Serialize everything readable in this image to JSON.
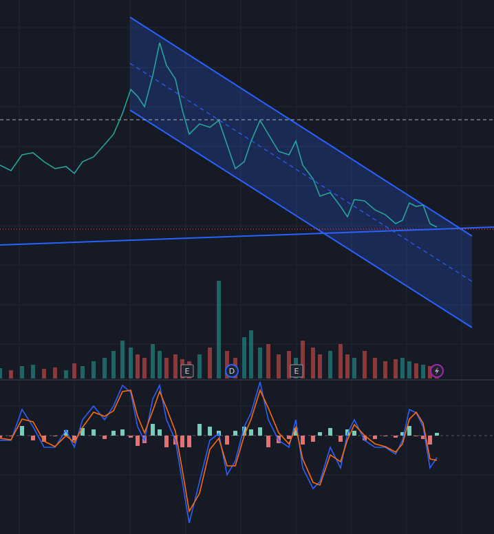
{
  "chart_data": [
    {
      "type": "line",
      "color": "#26a69a",
      "x": [
        0,
        16,
        32,
        48,
        64,
        80,
        96,
        108,
        120,
        136,
        152,
        165,
        178,
        190,
        200,
        210,
        222,
        232,
        242,
        255,
        265,
        275,
        290,
        305,
        318,
        330,
        342,
        355,
        365,
        378,
        390,
        405,
        420,
        430,
        440,
        455,
        465,
        480,
        495,
        505,
        515,
        530,
        545,
        560,
        575,
        585,
        595,
        605,
        615,
        625,
        635
      ],
      "values": [
        62,
        60.4,
        65,
        65.6,
        63,
        61,
        61.6,
        59.6,
        63,
        64.4,
        68,
        71,
        77,
        84,
        82,
        79,
        88,
        97.6,
        91,
        87,
        78,
        71,
        74,
        73,
        75,
        68,
        61,
        63,
        69,
        75,
        71,
        66,
        65,
        69,
        62,
        58,
        53,
        54,
        50,
        47,
        52,
        51.6,
        49,
        47.6,
        45,
        46,
        51,
        50,
        50.4,
        45,
        44
      ],
      "xlim": [
        0,
        718
      ],
      "ylim": [
        0,
        110
      ]
    },
    {
      "type": "bar",
      "up_color": "#26a69a",
      "down_color": "#ef5350",
      "x": [
        0,
        16,
        32,
        48,
        64,
        80,
        96,
        108,
        120,
        136,
        152,
        165,
        178,
        190,
        200,
        210,
        222,
        232,
        242,
        255,
        265,
        275,
        290,
        305,
        318,
        330,
        342,
        355,
        365,
        378,
        390,
        405,
        420,
        430,
        440,
        455,
        465,
        480,
        495,
        505,
        515,
        530,
        545,
        560,
        575,
        585,
        595,
        605,
        615,
        625,
        635
      ],
      "values": [
        15,
        12,
        18,
        20,
        14,
        16,
        12,
        22,
        18,
        25,
        30,
        40,
        55,
        45,
        35,
        30,
        50,
        40,
        30,
        35,
        28,
        25,
        35,
        45,
        142,
        40,
        30,
        60,
        70,
        45,
        50,
        35,
        40,
        30,
        55,
        45,
        35,
        40,
        50,
        35,
        30,
        40,
        30,
        25,
        28,
        30,
        25,
        22,
        20,
        18,
        15
      ],
      "xlim": [
        0,
        718
      ],
      "ylim": [
        0,
        150
      ]
    },
    {
      "type": "line",
      "x": [
        0,
        16,
        32,
        48,
        64,
        80,
        96,
        108,
        120,
        136,
        152,
        165,
        178,
        190,
        200,
        210,
        222,
        232,
        242,
        255,
        265,
        275,
        290,
        305,
        318,
        330,
        342,
        355,
        365,
        378,
        390,
        405,
        420,
        430,
        440,
        455,
        465,
        480,
        495,
        505,
        515,
        530,
        545,
        560,
        575,
        585,
        595,
        605,
        615,
        625,
        635
      ],
      "series": [
        {
          "color": "#2962ff",
          "values": [
            -3.5,
            -3.5,
            19,
            6.5,
            -8.5,
            -8.5,
            4,
            -8.5,
            11.5,
            21.5,
            11.5,
            21.5,
            36.5,
            31.5,
            6.5,
            -3.5,
            26.5,
            36.5,
            11.5,
            -3.5,
            -33.5,
            -63.5,
            -33.5,
            -3.5,
            1.5,
            -28.5,
            -18.5,
            6.5,
            16.5,
            39,
            11.5,
            -3.5,
            -8.5,
            11.5,
            -23.5,
            -38.5,
            -33.5,
            -8.5,
            -23.5,
            1.5,
            11.5,
            -3.5,
            -8.5,
            -8.5,
            -13.5,
            -3.5,
            19,
            16.5,
            6.5,
            -23.5,
            -16
          ]
        },
        {
          "color": "#ff6d00",
          "values": [
            -2,
            -3,
            12,
            10,
            -4,
            -8,
            0,
            -5,
            6,
            17,
            14,
            18,
            32,
            33,
            14,
            2,
            18,
            32,
            20,
            3,
            -25,
            -55,
            -42,
            -10,
            -2,
            -22,
            -22,
            0,
            12,
            33,
            20,
            2,
            -6,
            6,
            -17,
            -34,
            -36,
            -14,
            -19,
            -3,
            8,
            0,
            -6,
            -8,
            -12,
            -6,
            12,
            17,
            9,
            -17,
            -18
          ]
        }
      ],
      "xlim": [
        0,
        718
      ],
      "ylim": [
        -71.5,
        40
      ]
    },
    {
      "type": "bar",
      "up_color": "#84e1cc",
      "down_color": "#f77c80",
      "x": [
        0,
        16,
        32,
        48,
        64,
        80,
        96,
        108,
        120,
        136,
        152,
        165,
        178,
        190,
        200,
        210,
        222,
        232,
        242,
        255,
        265,
        275,
        290,
        305,
        318,
        330,
        342,
        355,
        365,
        378,
        390,
        405,
        420,
        430,
        440,
        455,
        465,
        480,
        495,
        505,
        515,
        530,
        545,
        560,
        575,
        585,
        595,
        605,
        615,
        625,
        635
      ],
      "values": [
        -1.5,
        -0.5,
        7,
        -3.5,
        -4.5,
        -0.5,
        4,
        -3.5,
        5.5,
        4.5,
        -2.5,
        3.5,
        4.5,
        -1.5,
        -7.5,
        -5.5,
        8.5,
        4.5,
        -8.5,
        -6.5,
        -8.5,
        -8.5,
        8.5,
        6.5,
        3.5,
        -6.5,
        3.5,
        6.5,
        4.5,
        6,
        -8.5,
        -5.5,
        -2.5,
        5.5,
        -6.5,
        -4.5,
        2.5,
        5.5,
        -4.5,
        4.5,
        3.5,
        -3.5,
        -2.5,
        -0.5,
        -1.5,
        2.5,
        7,
        -0.5,
        -2.5,
        -6.5,
        2
      ],
      "xlim": [
        0,
        718
      ],
      "ylim": [
        -71.5,
        40
      ]
    }
  ],
  "markers": [
    "E",
    "D",
    "E"
  ]
}
